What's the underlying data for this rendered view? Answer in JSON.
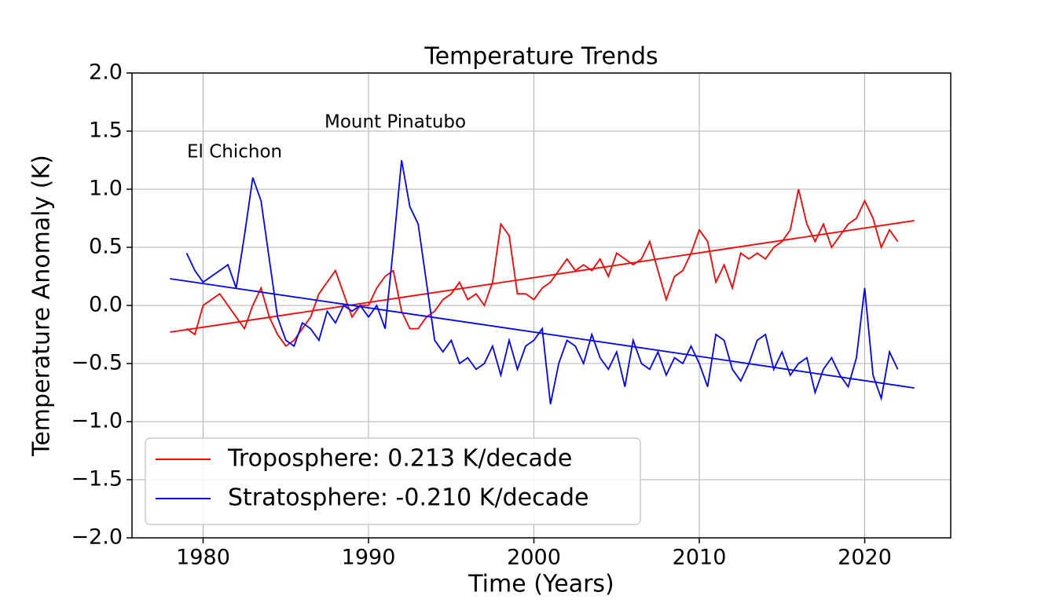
{
  "chart_data": {
    "type": "line",
    "title": "Temperature Trends",
    "x_label": "Time (Years)",
    "y_label": "Temperature Anomaly (K)",
    "annotations": [
      "El Chichon",
      "Mount Pinatubo"
    ],
    "xlim": [
      1975.7,
      2025.2
    ],
    "xticks": [
      1980,
      1990,
      2000,
      2010,
      2020
    ],
    "ylim": [
      -2.0,
      2.0
    ],
    "yticks": [
      {
        "value": -2.0,
        "label": "−2.0"
      },
      {
        "value": -1.5,
        "label": "−1.5"
      },
      {
        "value": -1.0,
        "label": "−1.0"
      },
      {
        "value": -0.5,
        "label": "−0.5"
      },
      {
        "value": 0,
        "label": "0.0"
      },
      {
        "value": 0.5,
        "label": "0.5"
      },
      {
        "value": 1.0,
        "label": "1.0"
      },
      {
        "value": 1.5,
        "label": "1.5"
      },
      {
        "value": 2.0,
        "label": "2.0"
      }
    ],
    "grid": true,
    "legend": "lower left",
    "x": [
      1979,
      1979.5,
      1980,
      1980.5,
      1981,
      1981.5,
      1982,
      1982.5,
      1983,
      1983.5,
      1984,
      1984.5,
      1985,
      1985.5,
      1986,
      1986.5,
      1987,
      1987.5,
      1988,
      1988.5,
      1989,
      1989.5,
      1990,
      1990.5,
      1991,
      1991.5,
      1992,
      1992.5,
      1993,
      1993.5,
      1994,
      1994.5,
      1995,
      1995.5,
      1996,
      1996.5,
      1997,
      1997.5,
      1998,
      1998.5,
      1999,
      1999.5,
      2000,
      2000.5,
      2001,
      2001.5,
      2002,
      2002.5,
      2003,
      2003.5,
      2004,
      2004.5,
      2005,
      2005.5,
      2006,
      2006.5,
      2007,
      2007.5,
      2008,
      2008.5,
      2009,
      2009.5,
      2010,
      2010.5,
      2011,
      2011.5,
      2012,
      2012.5,
      2013,
      2013.5,
      2014,
      2014.5,
      2015,
      2015.5,
      2016,
      2016.5,
      2017,
      2017.5,
      2018,
      2018.5,
      2019,
      2019.5,
      2020,
      2020.5,
      2021,
      2021.5,
      2022
    ],
    "trend_x": [
      1978,
      2023
    ],
    "series": [
      {
        "name": "Troposphere: 0.213 K/decade",
        "color": "#ff0000",
        "values": [
          -0.2,
          -0.25,
          0.0,
          0.05,
          0.1,
          0.0,
          -0.1,
          -0.2,
          0.0,
          0.15,
          -0.1,
          -0.25,
          -0.35,
          -0.3,
          -0.2,
          -0.1,
          0.1,
          0.2,
          0.3,
          0.1,
          -0.1,
          0.0,
          0.0,
          0.15,
          0.25,
          0.3,
          -0.05,
          -0.2,
          -0.2,
          -0.1,
          -0.05,
          0.05,
          0.1,
          0.2,
          0.05,
          0.1,
          0.0,
          0.2,
          0.7,
          0.6,
          0.1,
          0.1,
          0.05,
          0.15,
          0.2,
          0.3,
          0.4,
          0.3,
          0.35,
          0.3,
          0.4,
          0.25,
          0.45,
          0.4,
          0.35,
          0.4,
          0.55,
          0.3,
          0.05,
          0.25,
          0.3,
          0.45,
          0.65,
          0.55,
          0.2,
          0.35,
          0.15,
          0.45,
          0.4,
          0.45,
          0.4,
          0.5,
          0.55,
          0.65,
          1.0,
          0.7,
          0.55,
          0.7,
          0.5,
          0.6,
          0.7,
          0.75,
          0.9,
          0.75,
          0.5,
          0.65,
          0.55
        ],
        "trend": [
          -0.23,
          0.73
        ]
      },
      {
        "name": "Stratosphere: -0.210 K/decade",
        "color": "#0000ff",
        "values": [
          0.45,
          0.3,
          0.2,
          0.25,
          0.3,
          0.35,
          0.15,
          0.6,
          1.1,
          0.9,
          0.4,
          -0.1,
          -0.3,
          -0.35,
          -0.15,
          -0.2,
          -0.3,
          -0.05,
          -0.15,
          0.0,
          -0.05,
          0.0,
          -0.1,
          0.0,
          -0.2,
          0.5,
          1.25,
          0.85,
          0.7,
          0.2,
          -0.3,
          -0.4,
          -0.3,
          -0.5,
          -0.45,
          -0.55,
          -0.5,
          -0.35,
          -0.6,
          -0.3,
          -0.55,
          -0.35,
          -0.3,
          -0.2,
          -0.85,
          -0.5,
          -0.3,
          -0.35,
          -0.5,
          -0.25,
          -0.45,
          -0.55,
          -0.4,
          -0.7,
          -0.3,
          -0.5,
          -0.55,
          -0.4,
          -0.6,
          -0.45,
          -0.5,
          -0.35,
          -0.5,
          -0.7,
          -0.25,
          -0.3,
          -0.55,
          -0.65,
          -0.5,
          -0.3,
          -0.25,
          -0.55,
          -0.4,
          -0.6,
          -0.5,
          -0.45,
          -0.75,
          -0.55,
          -0.45,
          -0.6,
          -0.7,
          -0.45,
          0.15,
          -0.6,
          -0.8,
          -0.4,
          -0.55
        ],
        "trend": [
          0.23,
          -0.71
        ]
      }
    ]
  }
}
